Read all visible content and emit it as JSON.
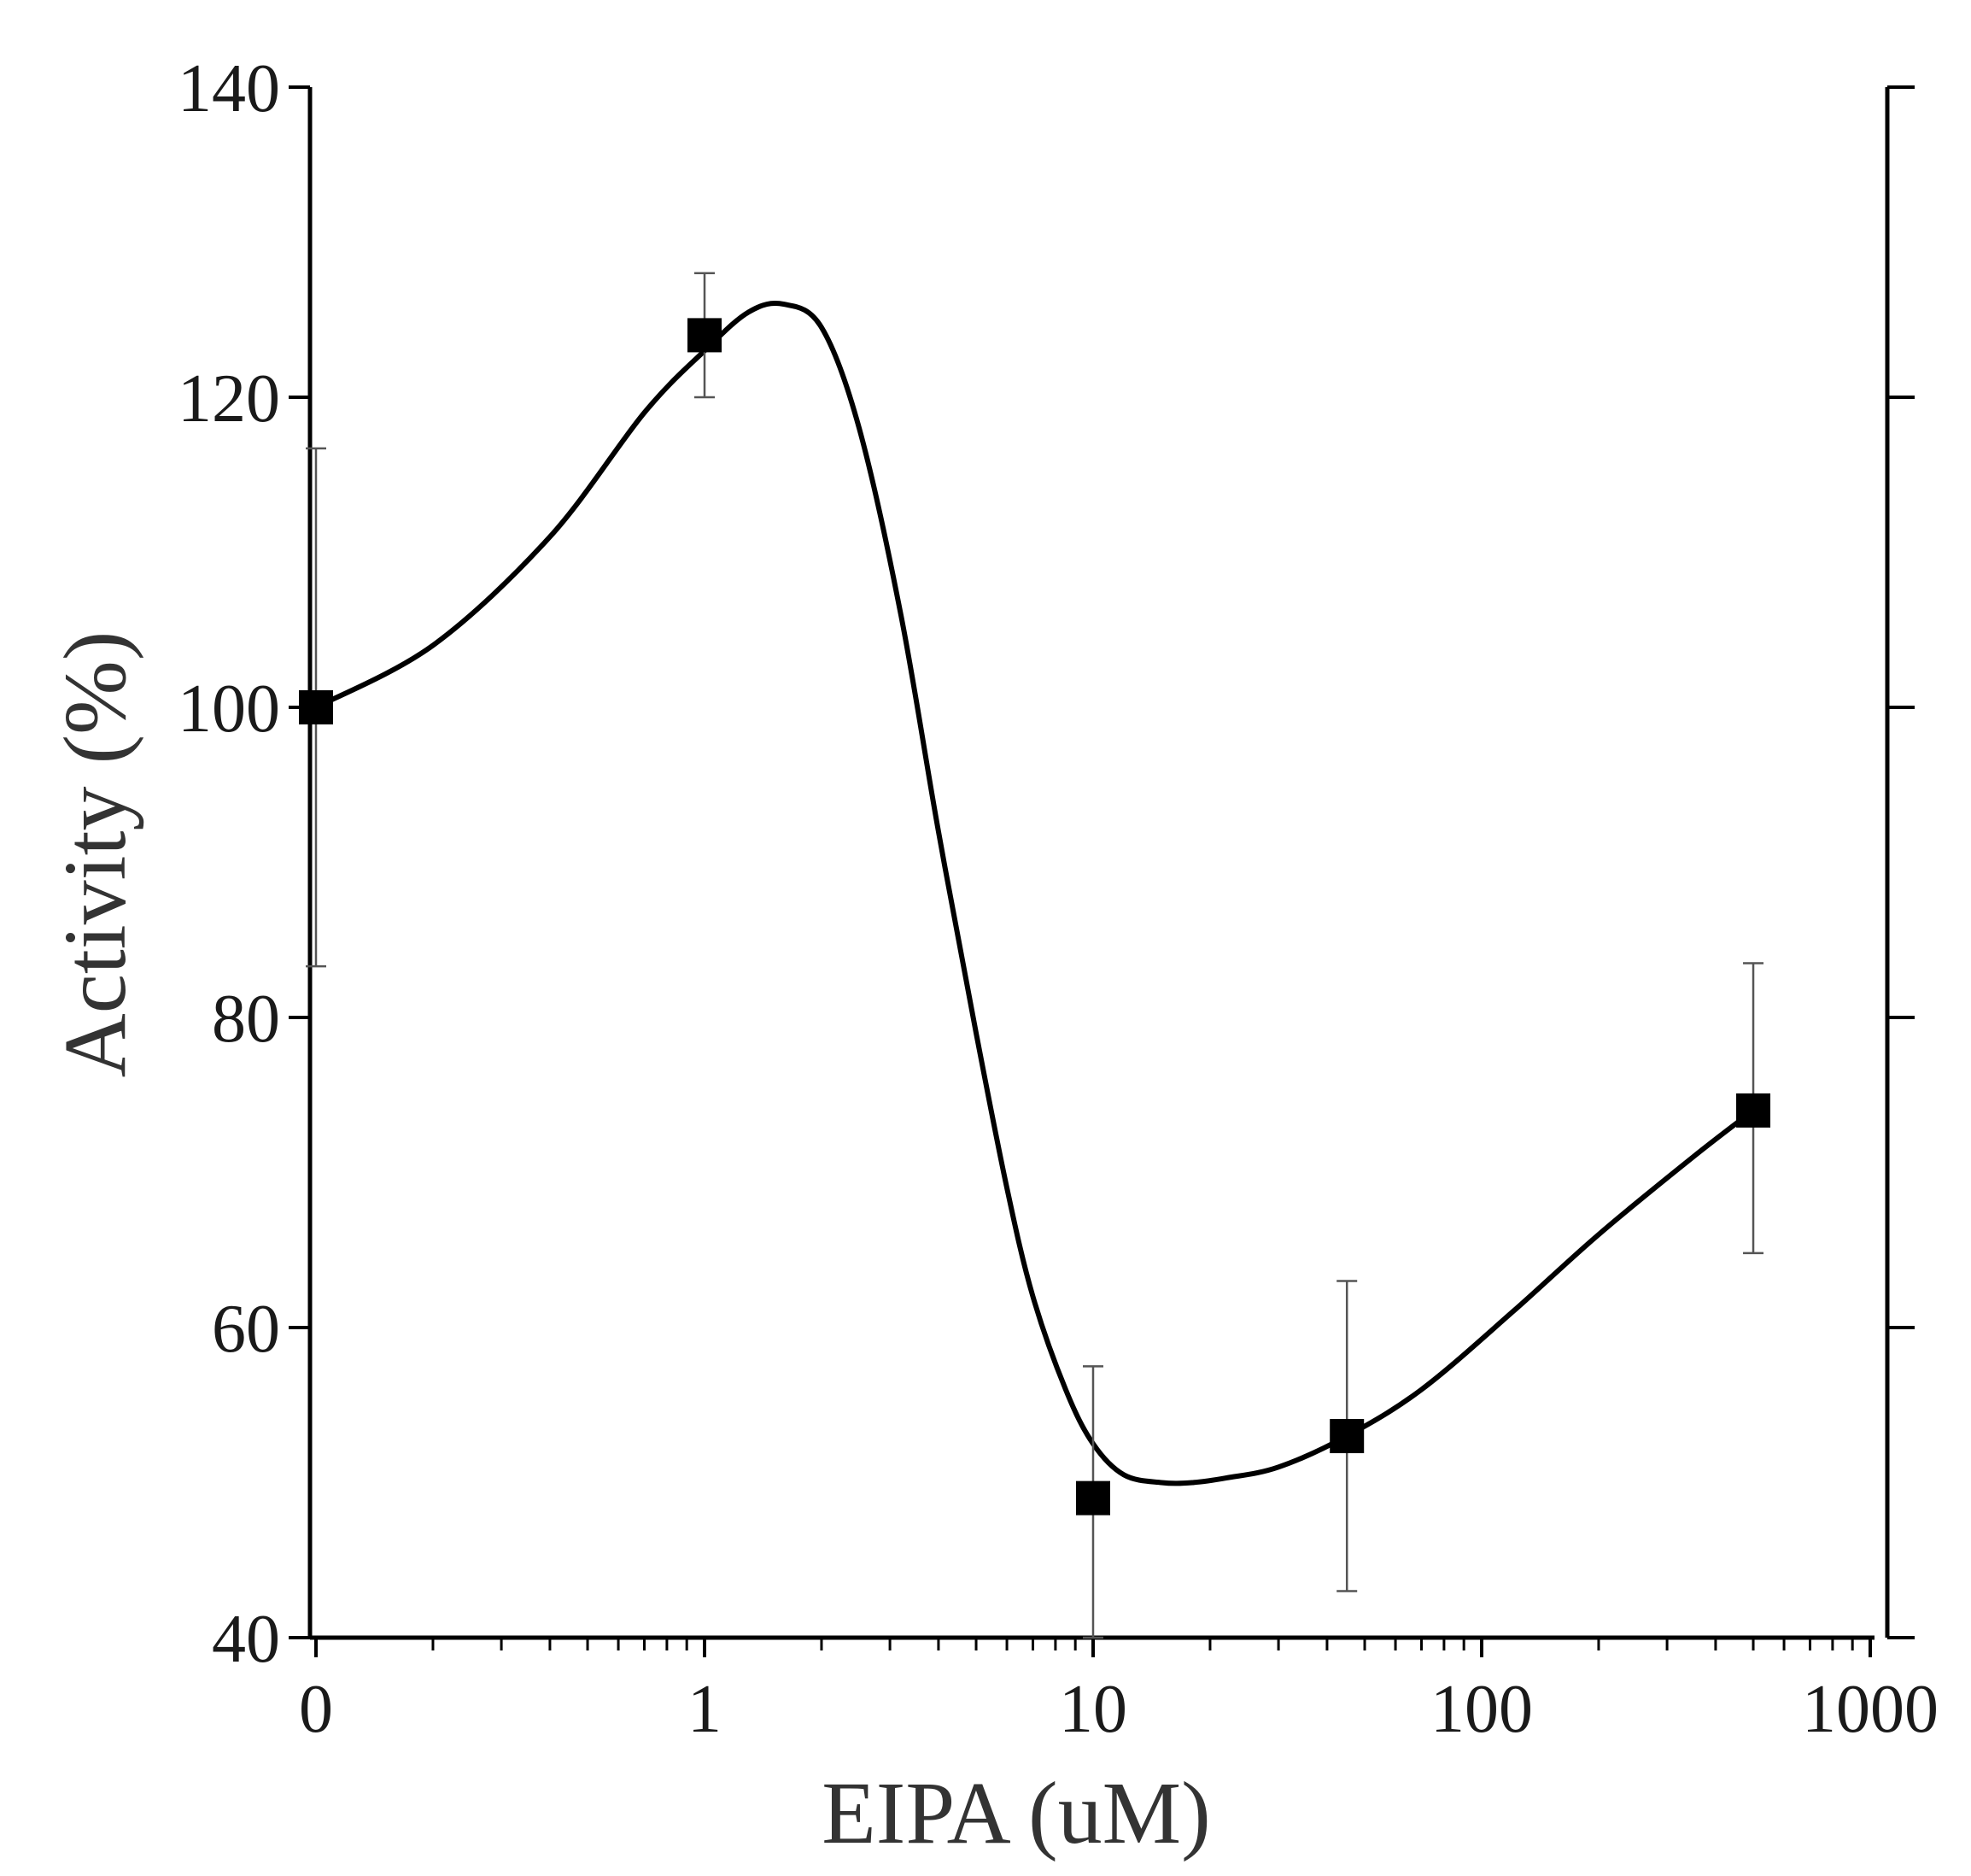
{
  "chart_data": {
    "type": "scatter",
    "title": "",
    "xlabel": "EIPA (uM)",
    "ylabel": "Activity (%)",
    "xscale": "log",
    "xlim": [
      0.1,
      1000
    ],
    "ylim": [
      40,
      140
    ],
    "x_ticks": [
      0.1,
      1,
      10,
      100,
      1000
    ],
    "x_tick_labels": [
      "0",
      "1",
      "10",
      "100",
      "1000"
    ],
    "y_ticks": [
      40,
      60,
      80,
      100,
      120,
      140
    ],
    "y_tick_labels": [
      "40",
      "60",
      "80",
      "100",
      "120",
      "140"
    ],
    "series": [
      {
        "name": "Activity",
        "marker": "square",
        "x": [
          0.1,
          1,
          10,
          45,
          500
        ],
        "y": [
          100,
          124,
          49,
          53,
          74
        ],
        "error": [
          [
            83.3,
            116.7
          ],
          [
            120,
            128
          ],
          [
            40,
            57.5
          ],
          [
            43,
            63
          ],
          [
            64.8,
            83.5
          ]
        ]
      }
    ],
    "fit_curve": {
      "x": [
        0.1,
        0.2,
        0.4,
        0.7,
        1,
        1.3,
        1.6,
        2,
        2.5,
        3.2,
        4,
        5,
        6,
        7,
        8.5,
        10,
        12,
        15,
        18,
        22,
        30,
        45,
        70,
        120,
        200,
        350,
        500
      ],
      "y": [
        100,
        104,
        111,
        119,
        123,
        125.5,
        126,
        124.5,
        118,
        106,
        92,
        79,
        69,
        62,
        56,
        52.5,
        50.5,
        50,
        50,
        50.3,
        51,
        53,
        56,
        61,
        66,
        71,
        74
      ]
    },
    "grid": false,
    "legend": "none",
    "right_axis_ticks": [
      40,
      60,
      80,
      100,
      120,
      140
    ]
  }
}
